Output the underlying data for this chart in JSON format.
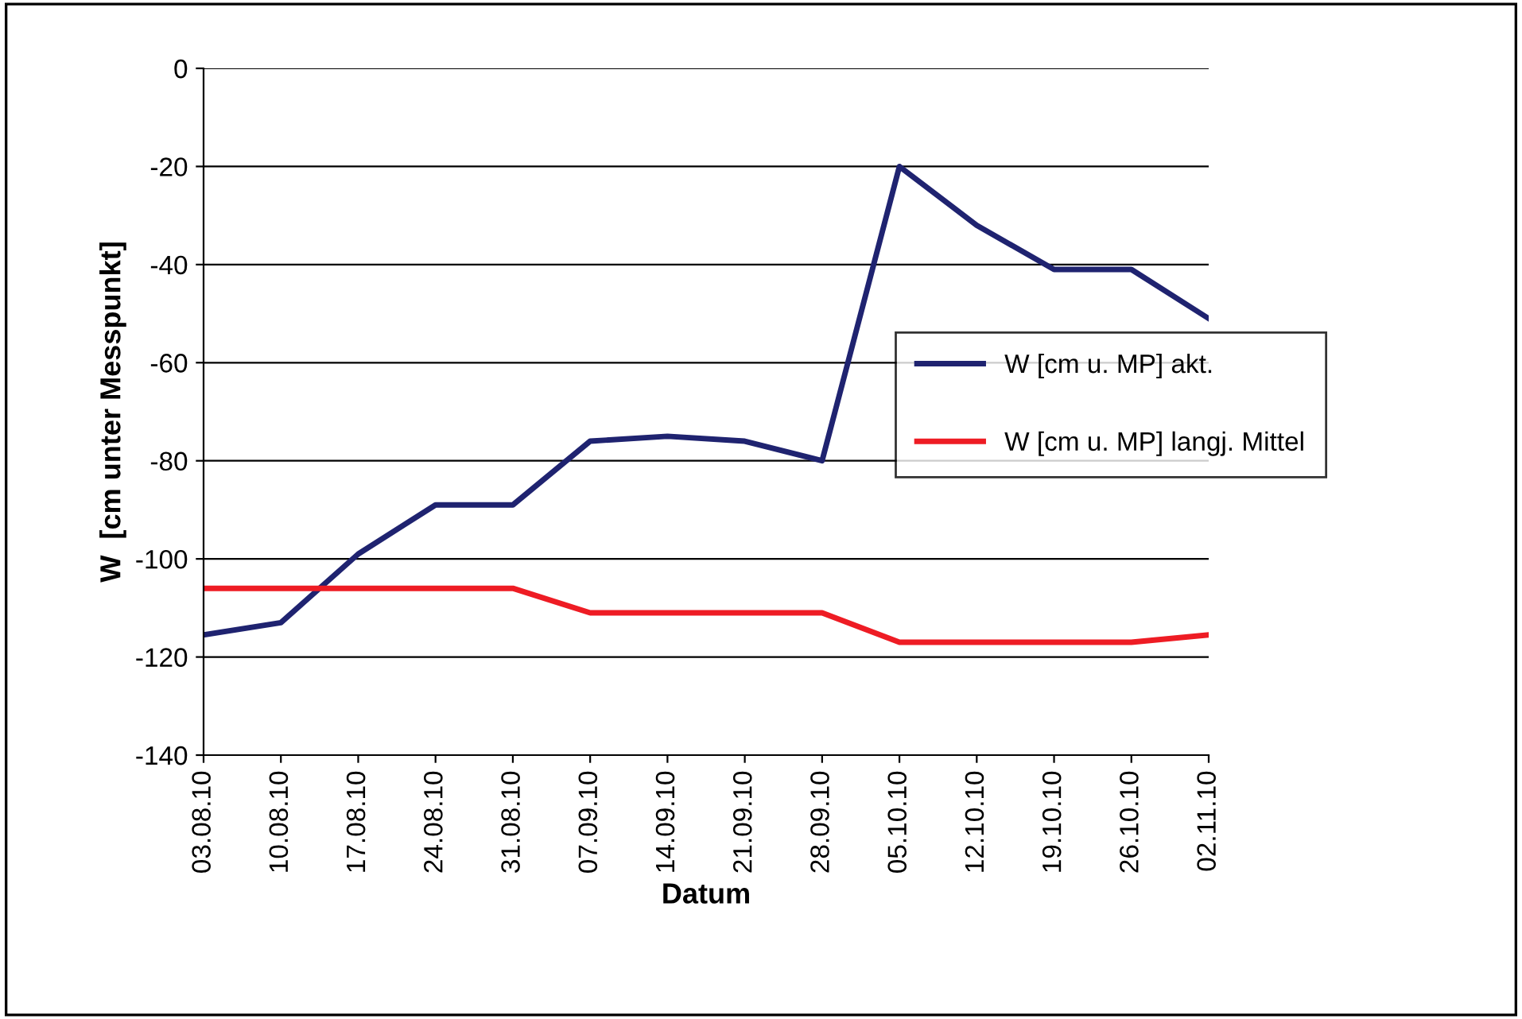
{
  "chart_data": {
    "type": "line",
    "xlabel": "Datum",
    "ylabel": "W  [cm unter Messpunkt]",
    "categories": [
      "03.08.10",
      "10.08.10",
      "17.08.10",
      "24.08.10",
      "31.08.10",
      "07.09.10",
      "14.09.10",
      "21.09.10",
      "28.09.10",
      "05.10.10",
      "12.10.10",
      "19.10.10",
      "26.10.10",
      "02.11.10"
    ],
    "series": [
      {
        "name": "W [cm u. MP] akt.",
        "color": "#1f2370",
        "values": [
          -115.5,
          -113,
          -99,
          -89,
          -89,
          -76,
          -75,
          -76,
          -80,
          -20,
          -32,
          -41,
          -41,
          -51
        ]
      },
      {
        "name": "W [cm u. MP] langj. Mittel",
        "color": "#ee1c24",
        "values": [
          -106,
          -106,
          -106,
          -106,
          -106,
          -111,
          -111,
          -111,
          -111,
          -117,
          -117,
          -117,
          -117,
          -115.5
        ]
      }
    ],
    "ylim": [
      -140,
      0
    ],
    "yticks": [
      -140,
      -120,
      -100,
      -80,
      -60,
      -40,
      -20,
      0
    ],
    "grid": "y",
    "legend": "right",
    "marker": "none",
    "line_style": "solid"
  }
}
